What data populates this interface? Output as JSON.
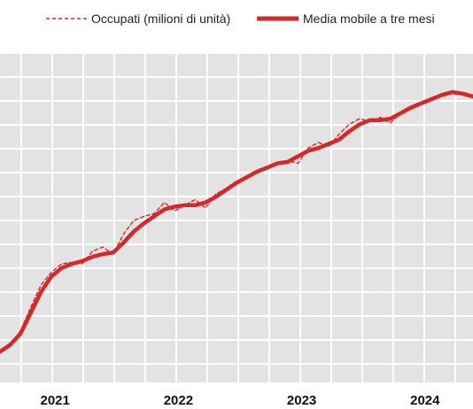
{
  "chart_data": {
    "type": "line",
    "title": "",
    "xlabel": "",
    "ylabel": "",
    "x_ticks": [
      "2021",
      "2022",
      "2023",
      "2024"
    ],
    "grid": true,
    "legend_position": "top",
    "colors": {
      "series": "#d4282b",
      "plot_background": "#e3e3e3",
      "grid": "#ffffff"
    },
    "x": [
      "2020-06",
      "2020-07",
      "2020-08",
      "2020-09",
      "2020-10",
      "2020-11",
      "2020-12",
      "2021-01",
      "2021-02",
      "2021-03",
      "2021-04",
      "2021-05",
      "2021-06",
      "2021-07",
      "2021-08",
      "2021-09",
      "2021-10",
      "2021-11",
      "2021-12",
      "2022-01",
      "2022-02",
      "2022-03",
      "2022-04",
      "2022-05",
      "2022-06",
      "2022-07",
      "2022-08",
      "2022-09",
      "2022-10",
      "2022-11",
      "2022-12",
      "2023-01",
      "2023-02",
      "2023-03",
      "2023-04",
      "2023-05",
      "2023-06",
      "2023-07",
      "2023-08",
      "2023-09",
      "2023-10",
      "2023-11",
      "2023-12",
      "2024-01",
      "2024-02",
      "2024-03",
      "2024-04"
    ],
    "series": [
      {
        "name": "Occupati (milioni di unità)",
        "style": "dashed",
        "values": [
          22.12,
          22.17,
          22.27,
          22.44,
          22.6,
          22.69,
          22.75,
          22.76,
          22.75,
          22.84,
          22.87,
          22.82,
          22.96,
          23.06,
          23.09,
          23.11,
          23.19,
          23.13,
          23.17,
          23.21,
          23.15,
          23.25,
          23.29,
          23.34,
          23.37,
          23.41,
          23.44,
          23.47,
          23.49,
          23.47,
          23.58,
          23.62,
          23.59,
          23.68,
          23.75,
          23.79,
          23.77,
          23.8,
          23.76,
          23.83,
          23.88,
          23.91,
          23.93,
          23.96,
          23.99,
          23.98,
          23.95
        ]
      },
      {
        "name": "Media mobile a tre mesi",
        "style": "solid",
        "values": [
          22.12,
          22.17,
          22.25,
          22.4,
          22.55,
          22.66,
          22.72,
          22.75,
          22.77,
          22.8,
          22.82,
          22.83,
          22.9,
          22.98,
          23.04,
          23.09,
          23.14,
          23.16,
          23.17,
          23.17,
          23.19,
          23.23,
          23.28,
          23.33,
          23.37,
          23.41,
          23.44,
          23.47,
          23.48,
          23.52,
          23.56,
          23.58,
          23.61,
          23.64,
          23.7,
          23.75,
          23.78,
          23.78,
          23.79,
          23.83,
          23.87,
          23.9,
          23.93,
          23.96,
          23.98,
          23.97,
          23.95
        ]
      }
    ]
  }
}
